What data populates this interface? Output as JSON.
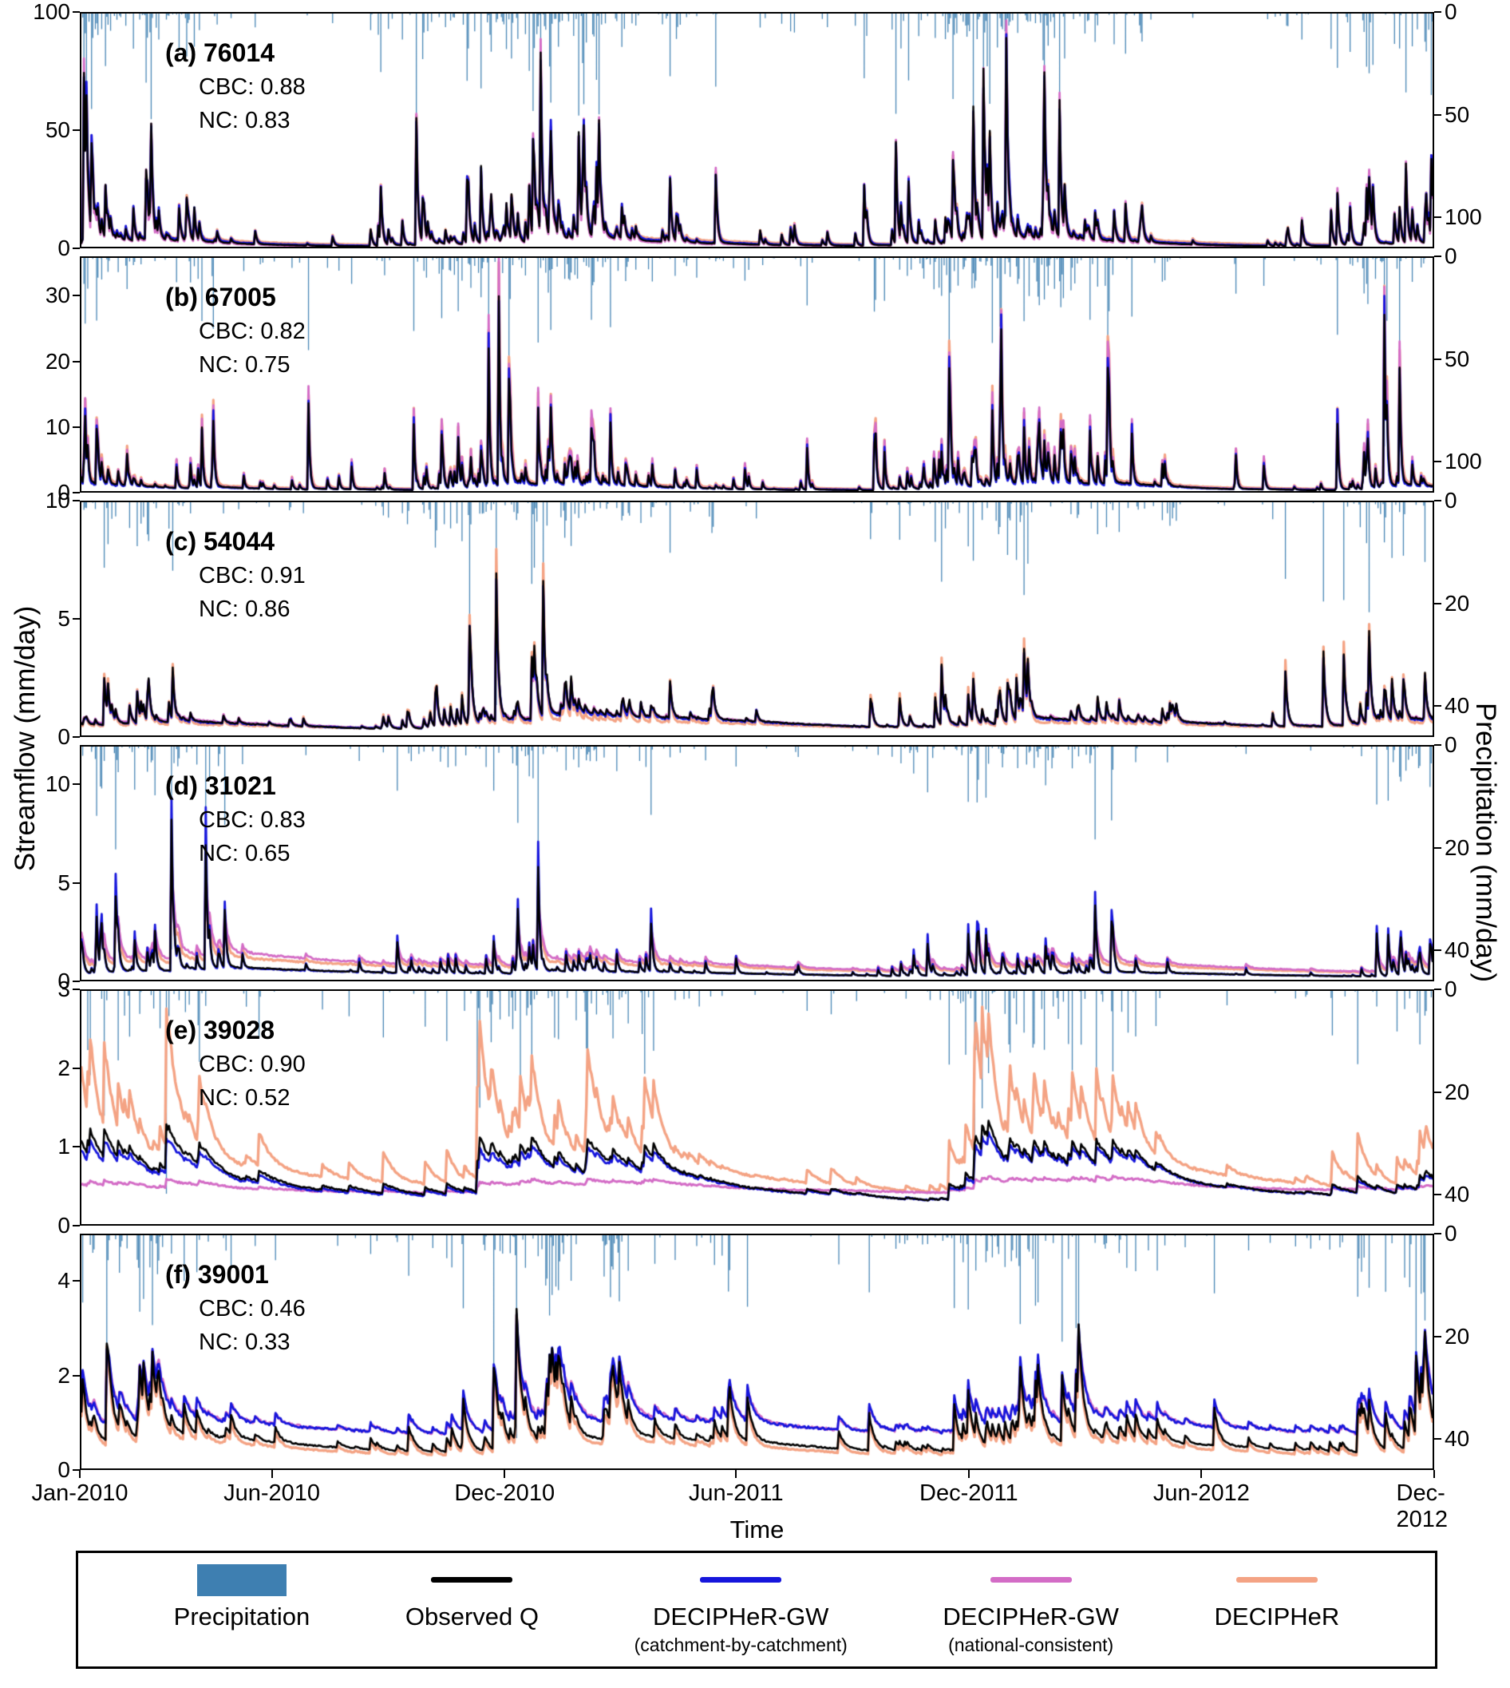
{
  "figure": {
    "ylabel_left": "Streamflow (mm/day)",
    "ylabel_right": "Precipitation (mm/day)",
    "xlabel": "Time"
  },
  "colors": {
    "precipitation": "#3E7FB1",
    "observed": "#000000",
    "decipher_gw_cbc": "#1616DC",
    "decipher_gw_nc": "#D36CC6",
    "decipher": "#F4A384",
    "axis": "#000000"
  },
  "x_axis": {
    "label": "Time",
    "n_days": 1066,
    "ticks": [
      {
        "label": "Jan-2010",
        "day": 0
      },
      {
        "label": "Jun-2010",
        "day": 151
      },
      {
        "label": "Dec-2010",
        "day": 334
      },
      {
        "label": "Jun-2011",
        "day": 516
      },
      {
        "label": "Dec-2011",
        "day": 699
      },
      {
        "label": "Jun-2012",
        "day": 882
      },
      {
        "label": "Dec-2012",
        "day": 1065
      }
    ]
  },
  "legend": {
    "items": [
      {
        "label": "Precipitation",
        "sublabel": "",
        "swatch": "patch",
        "color_key": "precipitation"
      },
      {
        "label": "Observed Q",
        "sublabel": "",
        "swatch": "line",
        "color_key": "observed"
      },
      {
        "label": "DECIPHeR-GW",
        "sublabel": "(catchment-by-catchment)",
        "swatch": "line",
        "color_key": "decipher_gw_cbc"
      },
      {
        "label": "DECIPHeR-GW",
        "sublabel": "(national-consistent)",
        "swatch": "line",
        "color_key": "decipher_gw_nc"
      },
      {
        "label": "DECIPHeR",
        "sublabel": "",
        "swatch": "line",
        "color_key": "decipher"
      }
    ]
  },
  "chart_data": {
    "type": "line",
    "description": "Six stacked daily time-series panels (Jan-2010 to Dec-2012). Each panel: precipitation bars hanging from top (right inverted axis) and four streamflow lines (observed, DECIPHeR-GW catchment-by-catchment, DECIPHeR-GW national-consistent, DECIPHeR).",
    "panels": [
      {
        "tag": "(a)",
        "station": "76014",
        "title": "(a) 76014",
        "cbc": 0.88,
        "nc": 0.83,
        "cbc_label": "CBC: 0.88",
        "nc_label": "NC: 0.83",
        "ylim": [
          0,
          100
        ],
        "yticks": [
          0,
          50,
          100
        ],
        "precip_lim": [
          0,
          115
        ],
        "precip_ticks": [
          0,
          50,
          100
        ],
        "peak": 93,
        "seed": 101,
        "precip": {
          "prob": 0.6,
          "max": 100
        },
        "year_gain": [
          1.1,
          0.95,
          1.0
        ],
        "series": [
          {
            "name": "observed",
            "color_key": "observed",
            "kf": 0.55,
            "ks": 0.02,
            "ff": 0.72,
            "mult": 1.0,
            "add": 0,
            "noise": 0.05,
            "lw": 2.4
          },
          {
            "name": "decipher_gw_cbc",
            "color_key": "decipher_gw_cbc",
            "kf": 0.5,
            "ks": 0.02,
            "ff": 0.7,
            "mult": 0.97,
            "add": 0.2,
            "noise": 0.06,
            "lw": 2.8
          },
          {
            "name": "decipher_gw_nc",
            "color_key": "decipher_gw_nc",
            "kf": 0.6,
            "ks": 0.025,
            "ff": 0.75,
            "mult": 1.03,
            "add": 0.1,
            "noise": 0.06,
            "lw": 2.8
          },
          {
            "name": "decipher",
            "color_key": "decipher",
            "kf": 0.5,
            "ks": 0.015,
            "ff": 0.68,
            "mult": 0.95,
            "add": 0.4,
            "noise": 0.06,
            "lw": 3.2
          }
        ]
      },
      {
        "tag": "(b)",
        "station": "67005",
        "title": "(b) 67005",
        "cbc": 0.82,
        "nc": 0.75,
        "cbc_label": "CBC: 0.82",
        "nc_label": "NC: 0.75",
        "ylim": [
          0,
          36
        ],
        "yticks": [
          0,
          10,
          20,
          30
        ],
        "precip_lim": [
          0,
          115
        ],
        "precip_ticks": [
          0,
          50,
          100
        ],
        "peak": 29,
        "seed": 202,
        "precip": {
          "prob": 0.6,
          "max": 100
        },
        "year_gain": [
          0.9,
          0.9,
          1.15
        ],
        "series": [
          {
            "name": "observed",
            "color_key": "observed",
            "kf": 0.6,
            "ks": 0.02,
            "ff": 0.65,
            "mult": 1.0,
            "add": 0,
            "noise": 0.05,
            "lw": 2.4
          },
          {
            "name": "decipher_gw_cbc",
            "color_key": "decipher_gw_cbc",
            "kf": 0.65,
            "ks": 0.02,
            "ff": 0.72,
            "mult": 1.08,
            "add": 0.1,
            "noise": 0.07,
            "lw": 2.8
          },
          {
            "name": "decipher_gw_nc",
            "color_key": "decipher_gw_nc",
            "kf": 0.6,
            "ks": 0.02,
            "ff": 0.72,
            "mult": 1.22,
            "add": 0.1,
            "noise": 0.06,
            "lw": 2.8
          },
          {
            "name": "decipher",
            "color_key": "decipher",
            "kf": 0.55,
            "ks": 0.02,
            "ff": 0.7,
            "mult": 1.18,
            "add": 0.2,
            "noise": 0.06,
            "lw": 3.2
          }
        ]
      },
      {
        "tag": "(c)",
        "station": "54044",
        "title": "(c) 54044",
        "cbc": 0.91,
        "nc": 0.86,
        "cbc_label": "CBC: 0.91",
        "nc_label": "NC: 0.86",
        "ylim": [
          0,
          10
        ],
        "yticks": [
          0,
          5,
          10
        ],
        "precip_lim": [
          0,
          46
        ],
        "precip_ticks": [
          0,
          20,
          40
        ],
        "peak": 7.0,
        "seed": 303,
        "precip": {
          "prob": 0.5,
          "max": 40
        },
        "year_gain": [
          0.85,
          0.8,
          1.2
        ],
        "series": [
          {
            "name": "observed",
            "color_key": "observed",
            "kf": 0.45,
            "ks": 0.006,
            "ff": 0.3,
            "mult": 1.0,
            "add": 0,
            "noise": 0.04,
            "lw": 2.4
          },
          {
            "name": "decipher_gw_cbc",
            "color_key": "decipher_gw_cbc",
            "kf": 0.45,
            "ks": 0.006,
            "ff": 0.32,
            "mult": 0.95,
            "add": 0.05,
            "noise": 0.05,
            "lw": 2.8
          },
          {
            "name": "decipher_gw_nc",
            "color_key": "decipher_gw_nc",
            "kf": 0.45,
            "ks": 0.007,
            "ff": 0.3,
            "mult": 0.9,
            "add": 0.08,
            "noise": 0.05,
            "lw": 2.8
          },
          {
            "name": "decipher",
            "color_key": "decipher",
            "kf": 0.5,
            "ks": 0.006,
            "ff": 0.45,
            "mult": 1.1,
            "add": 0.15,
            "noise": 0.05,
            "lw": 3.2
          }
        ]
      },
      {
        "tag": "(d)",
        "station": "31021",
        "title": "(d) 31021",
        "cbc": 0.83,
        "nc": 0.65,
        "cbc_label": "CBC: 0.83",
        "nc_label": "NC: 0.65",
        "ylim": [
          0,
          12
        ],
        "yticks": [
          0,
          5,
          10
        ],
        "precip_lim": [
          0,
          46
        ],
        "precip_ticks": [
          0,
          20,
          40
        ],
        "peak": 8,
        "seed": 404,
        "precip": {
          "prob": 0.5,
          "max": 40
        },
        "year_gain": [
          1.0,
          0.55,
          1.25
        ],
        "series": [
          {
            "name": "observed",
            "color_key": "observed",
            "kf": 0.5,
            "ks": 0.005,
            "ff": 0.4,
            "mult": 1.0,
            "add": 0,
            "noise": 0.04,
            "lw": 2.4
          },
          {
            "name": "decipher_gw_cbc",
            "color_key": "decipher_gw_cbc",
            "kf": 0.55,
            "ks": 0.005,
            "ff": 0.45,
            "mult": 1.22,
            "add": 0.02,
            "noise": 0.05,
            "lw": 2.8
          },
          {
            "name": "decipher_gw_nc",
            "color_key": "decipher_gw_nc",
            "kf": 0.3,
            "ks": 0.005,
            "ff": 0.25,
            "mult": 0.75,
            "add": 0.05,
            "noise": 0.04,
            "lw": 2.8
          },
          {
            "name": "decipher",
            "color_key": "decipher",
            "kf": 0.35,
            "ks": 0.005,
            "ff": 0.3,
            "mult": 0.8,
            "add": 0.1,
            "noise": 0.04,
            "lw": 3.2
          }
        ]
      },
      {
        "tag": "(e)",
        "station": "39028",
        "title": "(e) 39028",
        "cbc": 0.9,
        "nc": 0.52,
        "cbc_label": "CBC: 0.90",
        "nc_label": "NC: 0.52",
        "ylim": [
          0,
          3
        ],
        "yticks": [
          0,
          1,
          2,
          3
        ],
        "precip_lim": [
          0,
          46
        ],
        "precip_ticks": [
          0,
          20,
          40
        ],
        "peak": 1.32,
        "seed": 505,
        "precip": {
          "prob": 0.45,
          "max": 40
        },
        "year_gain": [
          1.05,
          0.8,
          1.15
        ],
        "series": [
          {
            "name": "observed",
            "color_key": "observed",
            "kf": 0.06,
            "ks": 0.0035,
            "ff": 0.3,
            "mult": 1.0,
            "add": 0,
            "noise": 0.02,
            "lw": 2.6
          },
          {
            "name": "decipher_gw_cbc",
            "color_key": "decipher_gw_cbc",
            "kf": 0.05,
            "ks": 0.003,
            "ff": 0.28,
            "mult": 0.9,
            "add": -0.02,
            "noise": 0.02,
            "lw": 2.8
          },
          {
            "name": "decipher_gw_nc",
            "color_key": "decipher_gw_nc",
            "kf": 0.04,
            "ks": 0.002,
            "ff": 0.15,
            "mult": 0.3,
            "add": 0.22,
            "noise": 0.02,
            "lw": 3.0
          },
          {
            "name": "decipher",
            "color_key": "decipher",
            "kf": 0.1,
            "ks": 0.004,
            "ff": 0.4,
            "mult": 2.05,
            "add": 0.05,
            "noise": 0.02,
            "lw": 3.4
          }
        ]
      },
      {
        "tag": "(f)",
        "station": "39001",
        "title": "(f) 39001",
        "cbc": 0.46,
        "nc": 0.33,
        "cbc_label": "CBC: 0.46",
        "nc_label": "NC: 0.33",
        "ylim": [
          0,
          5
        ],
        "yticks": [
          0,
          2,
          4
        ],
        "precip_lim": [
          0,
          46
        ],
        "precip_ticks": [
          0,
          20,
          40
        ],
        "peak": 3.5,
        "seed": 606,
        "precip": {
          "prob": 0.45,
          "max": 40
        },
        "year_gain": [
          1.05,
          0.75,
          1.2
        ],
        "series": [
          {
            "name": "observed",
            "color_key": "observed",
            "kf": 0.22,
            "ks": 0.005,
            "ff": 0.35,
            "mult": 1.0,
            "add": 0,
            "noise": 0.03,
            "lw": 2.6
          },
          {
            "name": "decipher_gw_cbc",
            "color_key": "decipher_gw_cbc",
            "kf": 0.18,
            "ks": 0.004,
            "ff": 0.3,
            "mult": 0.85,
            "add": 0.3,
            "noise": 0.03,
            "lw": 2.8
          },
          {
            "name": "decipher_gw_nc",
            "color_key": "decipher_gw_nc",
            "kf": 0.16,
            "ks": 0.004,
            "ff": 0.28,
            "mult": 0.8,
            "add": 0.25,
            "noise": 0.03,
            "lw": 3.0
          },
          {
            "name": "decipher",
            "color_key": "decipher",
            "kf": 0.22,
            "ks": 0.005,
            "ff": 0.38,
            "mult": 0.95,
            "add": -0.02,
            "noise": 0.03,
            "lw": 3.4
          }
        ]
      }
    ]
  }
}
